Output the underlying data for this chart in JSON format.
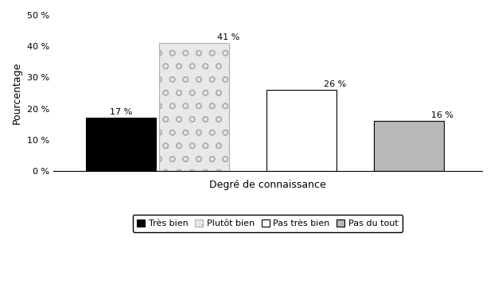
{
  "categories": [
    "Très bien",
    "Plutôt bien",
    "Pas très bien",
    "Pas du tout"
  ],
  "values": [
    17,
    41,
    26,
    16
  ],
  "labels": [
    "17 %",
    "41 %",
    "26 %",
    "16 %"
  ],
  "bar_colors": [
    "#000000",
    "#e8e8e8",
    "#ffffff",
    "#b8b8b8"
  ],
  "bar_hatches": [
    "",
    "o",
    "",
    ""
  ],
  "bar_edgecolors": [
    "#000000",
    "#b0b0b0",
    "#000000",
    "#000000"
  ],
  "bar_positions": [
    0.7,
    1.35,
    2.3,
    3.25
  ],
  "bar_width": 0.62,
  "ylabel": "Pourcentage",
  "xlabel": "Degré de connaissance",
  "ylim": [
    0,
    50
  ],
  "yticks": [
    0,
    10,
    20,
    30,
    40,
    50
  ],
  "ytick_labels": [
    "0 %",
    "10 %",
    "20 %",
    "30 %",
    "40 %",
    "50 %"
  ],
  "legend_labels": [
    "Très bien",
    "Plutôt bien",
    "Pas très bien",
    "Pas du tout"
  ],
  "legend_colors": [
    "#000000",
    "#e8e8e8",
    "#ffffff",
    "#b8b8b8"
  ],
  "legend_hatches": [
    "",
    "o",
    "",
    ""
  ],
  "legend_edgecolors": [
    "#000000",
    "#b0b0b0",
    "#000000",
    "#000000"
  ],
  "axis_label_fontsize": 9,
  "tick_fontsize": 8,
  "label_fontsize": 8,
  "legend_fontsize": 8,
  "background_color": "#ffffff"
}
